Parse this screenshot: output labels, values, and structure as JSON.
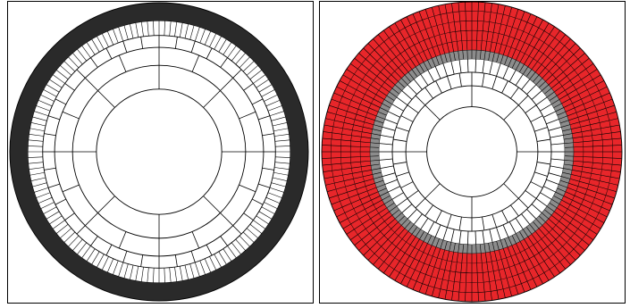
{
  "colors": {
    "background": "#ffffff",
    "line": "#000000",
    "dense_band": "#2a2a2a",
    "red_band": "#e8262a",
    "gray_band": "#8c8c8c"
  },
  "mesh_left": {
    "rings": [
      {
        "inner": 0.0,
        "outer": 0.42,
        "divisions": 0,
        "fill": "none"
      },
      {
        "inner": 0.42,
        "outer": 0.58,
        "divisions": 8,
        "fill": "none"
      },
      {
        "inner": 0.58,
        "outer": 0.7,
        "divisions": 16,
        "fill": "none"
      },
      {
        "inner": 0.7,
        "outer": 0.78,
        "divisions": 40,
        "fill": "none"
      },
      {
        "inner": 0.78,
        "outer": 0.88,
        "divisions": 140,
        "fill": "none"
      },
      {
        "inner": 0.88,
        "outer": 1.0,
        "divisions": 0,
        "fill": "dense"
      }
    ]
  },
  "mesh_right": {
    "rings": [
      {
        "inner": 0.0,
        "outer": 0.3,
        "divisions": 0,
        "fill": "none"
      },
      {
        "inner": 0.3,
        "outer": 0.44,
        "divisions": 8,
        "fill": "none"
      },
      {
        "inner": 0.44,
        "outer": 0.53,
        "divisions": 40,
        "fill": "none"
      },
      {
        "inner": 0.53,
        "outer": 0.62,
        "divisions": 70,
        "fill": "none"
      },
      {
        "inner": 0.62,
        "outer": 0.68,
        "divisions": 140,
        "fill": "gray"
      },
      {
        "inner": 0.68,
        "outer": 0.745,
        "divisions": 140,
        "fill": "red"
      },
      {
        "inner": 0.745,
        "outer": 0.81,
        "divisions": 140,
        "fill": "red"
      },
      {
        "inner": 0.81,
        "outer": 0.875,
        "divisions": 140,
        "fill": "red"
      },
      {
        "inner": 0.875,
        "outer": 0.94,
        "divisions": 140,
        "fill": "red"
      },
      {
        "inner": 0.94,
        "outer": 1.0,
        "divisions": 140,
        "fill": "red"
      }
    ]
  }
}
